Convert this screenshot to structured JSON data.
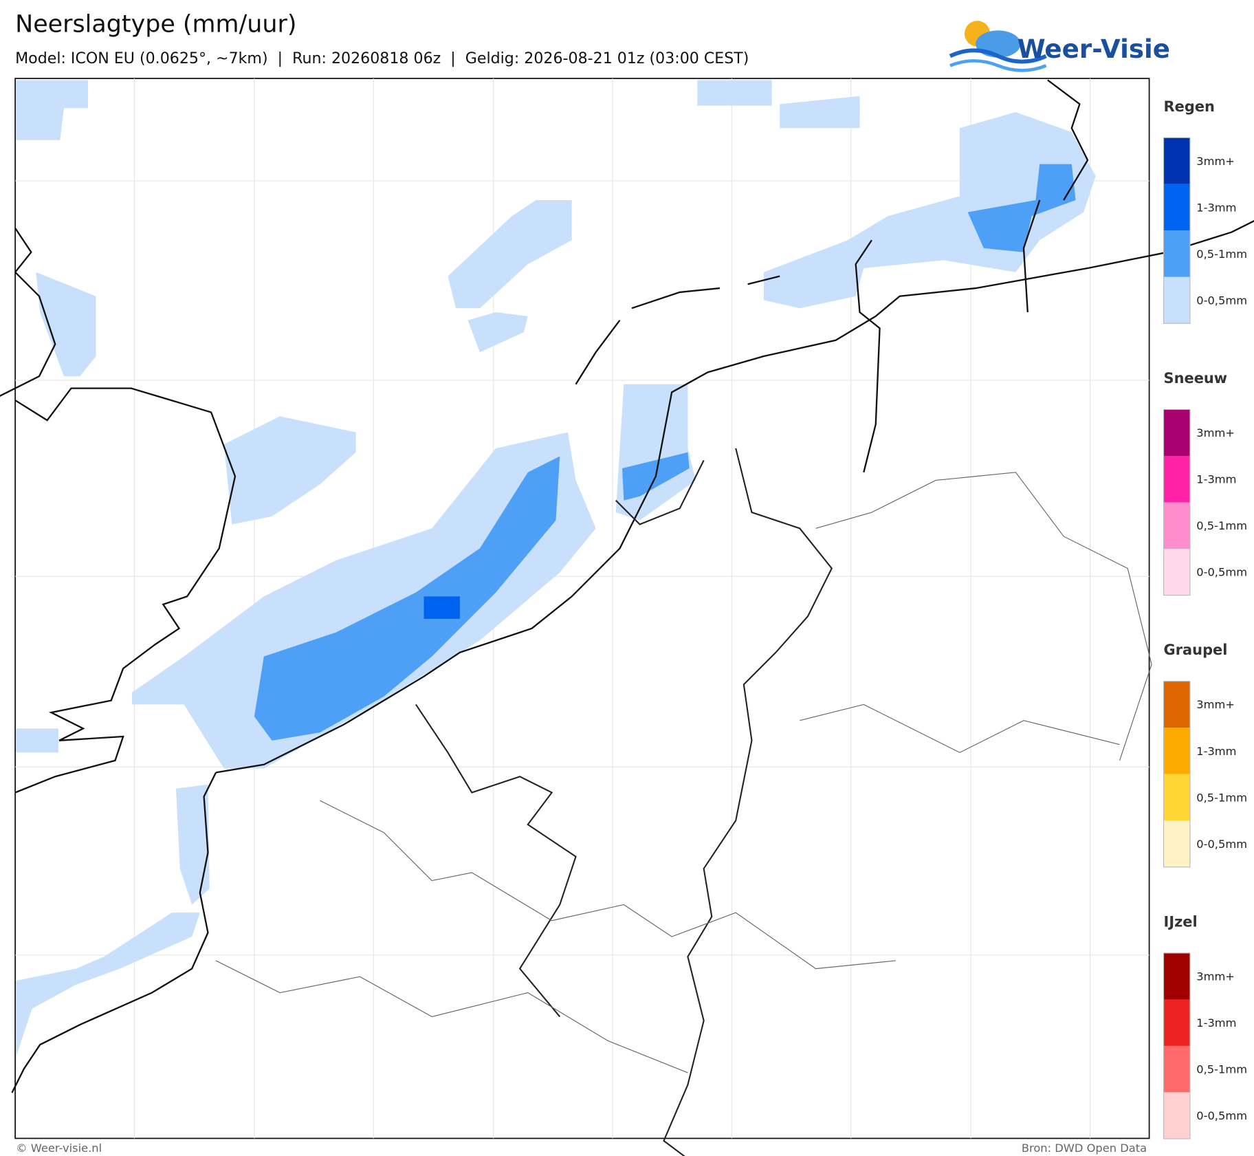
{
  "header": {
    "title": "Neerslagtype (mm/uur)",
    "subtitle": "Model: ICON EU (0.0625°, ~7km)  |  Run: 20260818 06z  |  Geldig: 2026-08-21 01z (03:00 CEST)",
    "logo": "Weer-Visie"
  },
  "legend": [
    {
      "title": "Regen",
      "items": [
        {
          "label": "3mm+",
          "color": "#0033b0"
        },
        {
          "label": "1-3mm",
          "color": "#0062f0"
        },
        {
          "label": "0,5-1mm",
          "color": "#4da0f5"
        },
        {
          "label": "0-0,5mm",
          "color": "#c8e0fb"
        }
      ]
    },
    {
      "title": "Sneeuw",
      "items": [
        {
          "label": "3mm+",
          "color": "#a8006e"
        },
        {
          "label": "1-3mm",
          "color": "#ff22a8"
        },
        {
          "label": "0,5-1mm",
          "color": "#ff8ccc"
        },
        {
          "label": "0-0,5mm",
          "color": "#ffd8ee"
        }
      ]
    },
    {
      "title": "Graupel",
      "items": [
        {
          "label": "3mm+",
          "color": "#dd6600"
        },
        {
          "label": "1-3mm",
          "color": "#ffaa00"
        },
        {
          "label": "0,5-1mm",
          "color": "#ffd535"
        },
        {
          "label": "0-0,5mm",
          "color": "#fff2c4"
        }
      ]
    },
    {
      "title": "IJzel",
      "items": [
        {
          "label": "3mm+",
          "color": "#a00000"
        },
        {
          "label": "1-3mm",
          "color": "#ee2222"
        },
        {
          "label": "0,5-1mm",
          "color": "#ff6a6a"
        },
        {
          "label": "0-0,5mm",
          "color": "#ffd0d0"
        }
      ]
    }
  ],
  "footer": {
    "left": "© Weer-visie.nl",
    "right": "Bron: DWD Open Data"
  }
}
